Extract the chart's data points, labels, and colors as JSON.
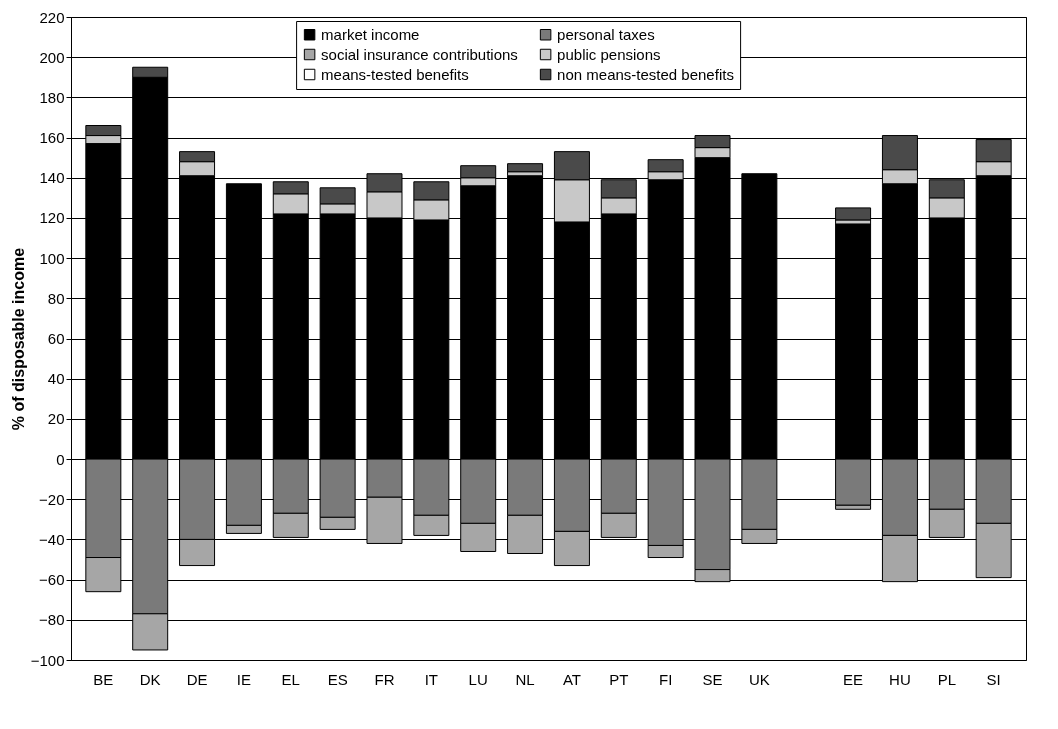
{
  "chart_data": {
    "type": "bar",
    "stacked": true,
    "ylabel": "% of disposable income",
    "categories": [
      "BE",
      "DK",
      "DE",
      "IE",
      "EL",
      "ES",
      "FR",
      "IT",
      "LU",
      "NL",
      "AT",
      "PT",
      "FI",
      "SE",
      "UK",
      null,
      "EE",
      "HU",
      "PL",
      "SI"
    ],
    "series": [
      {
        "name": "market income",
        "color": "#000000",
        "values": [
          157,
          190,
          141,
          137,
          122,
          122,
          120,
          119,
          136,
          141,
          118,
          122,
          139,
          150,
          142,
          null,
          117,
          137,
          120,
          141
        ]
      },
      {
        "name": "personal taxes",
        "color": "#7a7a7a",
        "values": [
          -49,
          -77,
          -40,
          -33,
          -27,
          -29,
          -19,
          -28,
          -32,
          -28,
          -36,
          -27,
          -43,
          -55,
          -35,
          null,
          -23,
          -38,
          -25,
          -32
        ]
      },
      {
        "name": "social insurance contributions",
        "color": "#a6a6a6",
        "values": [
          -17,
          -18,
          -13,
          -4,
          -12,
          -6,
          -23,
          -10,
          -14,
          -19,
          -17,
          -12,
          -6,
          -6,
          -7,
          null,
          -2,
          -23,
          -14,
          -27
        ]
      },
      {
        "name": "public pensions",
        "color": "#c8c8c8",
        "values": [
          4,
          null,
          7,
          null,
          10,
          5,
          13,
          10,
          4,
          2,
          21,
          8,
          4,
          5,
          null,
          null,
          2,
          7,
          10,
          7
        ]
      },
      {
        "name": "means-tested benefits",
        "color": "#ffffff",
        "values": [
          null,
          null,
          null,
          null,
          null,
          null,
          null,
          null,
          null,
          null,
          null,
          null,
          null,
          null,
          null,
          null,
          null,
          null,
          null,
          null
        ]
      },
      {
        "name": "non means-tested benefits",
        "color": "#4a4a4a",
        "values": [
          5,
          5,
          5,
          null,
          6,
          8,
          9,
          9,
          6,
          4,
          14,
          9,
          6,
          6,
          null,
          null,
          6,
          17,
          9,
          11
        ]
      }
    ],
    "ylim": [
      -100,
      220
    ],
    "yticks": [
      -100,
      -80,
      -60,
      -40,
      -20,
      0,
      20,
      40,
      60,
      80,
      100,
      120,
      140,
      160,
      180,
      200,
      220
    ],
    "grid": "y",
    "legend": "top"
  }
}
